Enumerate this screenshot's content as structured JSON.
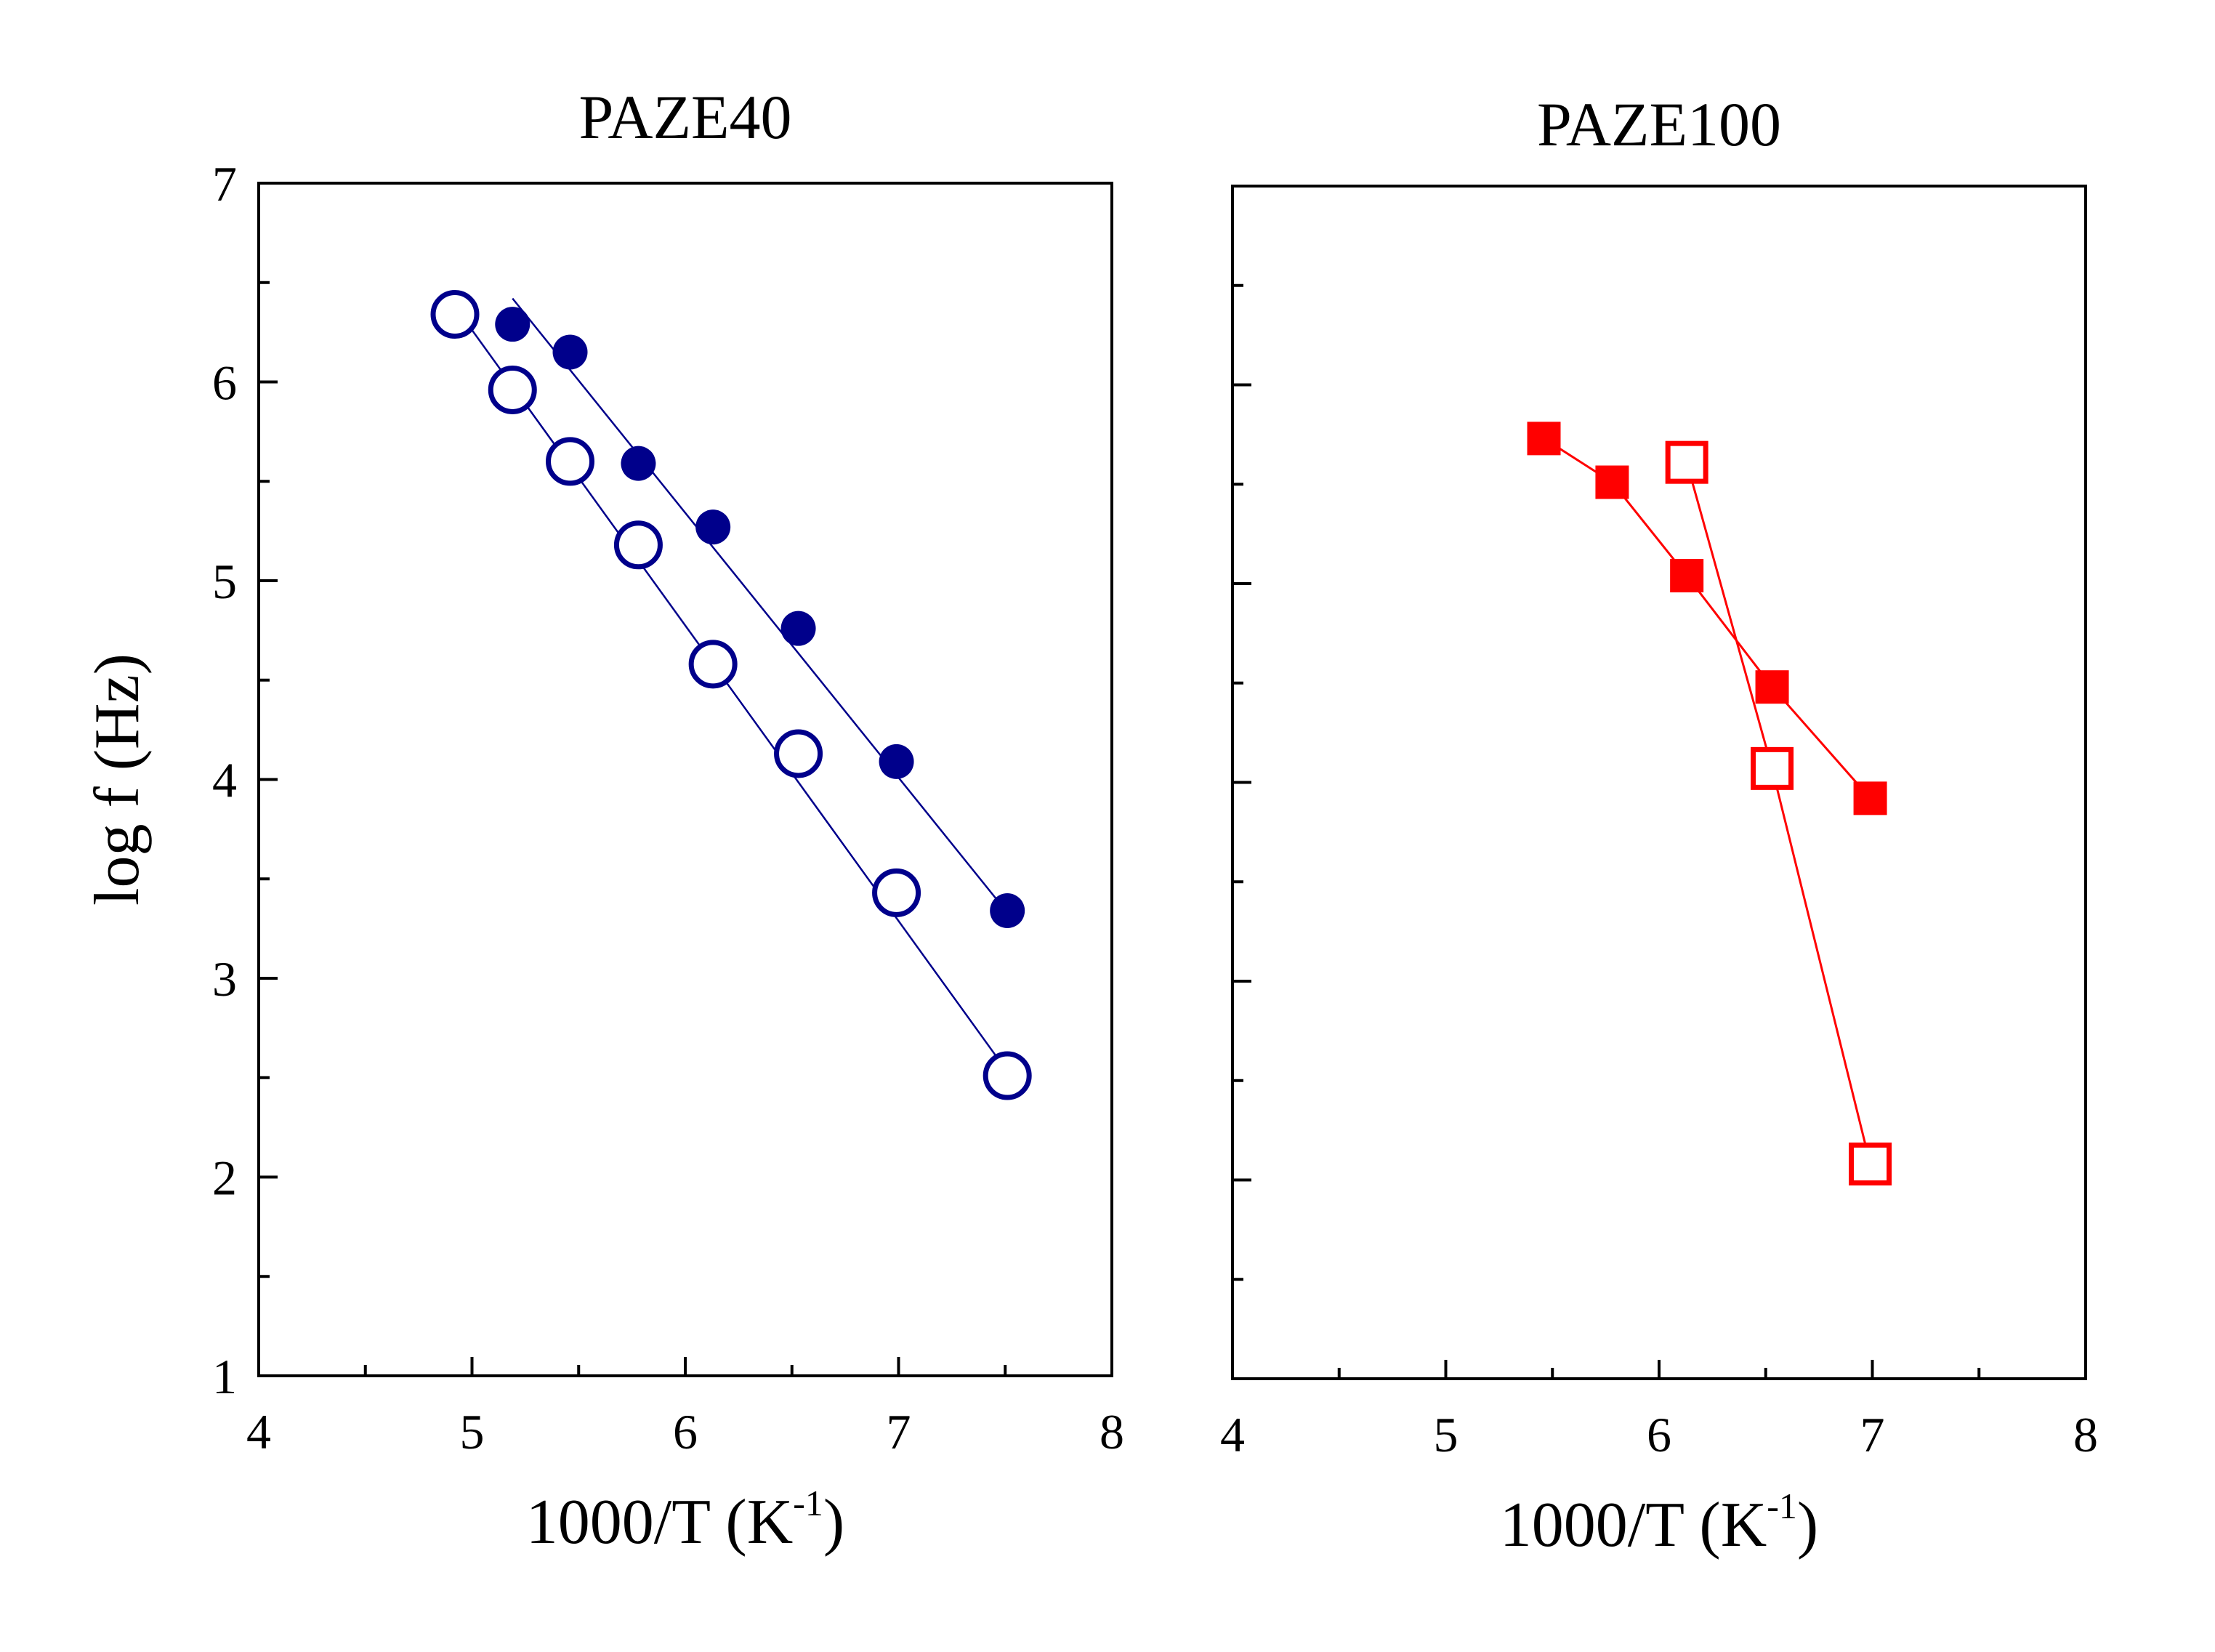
{
  "chart_data": [
    {
      "type": "scatter",
      "title": "PAZE40",
      "xlabel": "1000/T (K",
      "xlabel_sup": "-1",
      "xlabel_close": ")",
      "ylabel": "log f (Hz)",
      "xlim": [
        4,
        8
      ],
      "ylim": [
        1,
        7
      ],
      "xticks": [
        "4",
        "5",
        "6",
        "7",
        "8"
      ],
      "yticks": [
        "1",
        "2",
        "3",
        "4",
        "5",
        "6",
        "7"
      ],
      "color": "#00008b",
      "series": [
        {
          "name": "filled circles",
          "marker": "filled-circle",
          "x": [
            5.19,
            5.46,
            5.78,
            6.13,
            6.53,
            6.99,
            7.51
          ],
          "y": [
            6.29,
            6.15,
            5.59,
            5.27,
            4.76,
            4.09,
            3.34
          ],
          "fit": [
            [
              5.19,
              6.42
            ],
            [
              7.51,
              3.33
            ]
          ]
        },
        {
          "name": "open circles",
          "marker": "open-circle",
          "x": [
            4.92,
            5.19,
            5.46,
            5.78,
            6.13,
            6.53,
            6.99,
            7.51
          ],
          "y": [
            6.34,
            5.96,
            5.6,
            5.18,
            4.58,
            4.13,
            3.43,
            2.51
          ],
          "fit": [
            [
              4.92,
              6.38
            ],
            [
              7.51,
              2.53
            ]
          ]
        }
      ]
    },
    {
      "type": "scatter",
      "title": "PAZE100",
      "xlabel": "1000/T (K",
      "xlabel_sup": "-1",
      "xlabel_close": ")",
      "xlim": [
        4,
        8
      ],
      "ylim": [
        1,
        7
      ],
      "xticks": [
        "4",
        "5",
        "6",
        "7",
        "8"
      ],
      "color": "#ff0000",
      "series": [
        {
          "name": "filled squares",
          "marker": "filled-square",
          "x": [
            5.46,
            5.78,
            6.13,
            6.53,
            6.99
          ],
          "y": [
            5.73,
            5.51,
            5.04,
            4.48,
            3.92
          ]
        },
        {
          "name": "open squares",
          "marker": "open-square",
          "x": [
            6.13,
            6.53,
            6.99
          ],
          "y": [
            5.61,
            4.07,
            2.08
          ]
        }
      ]
    }
  ]
}
